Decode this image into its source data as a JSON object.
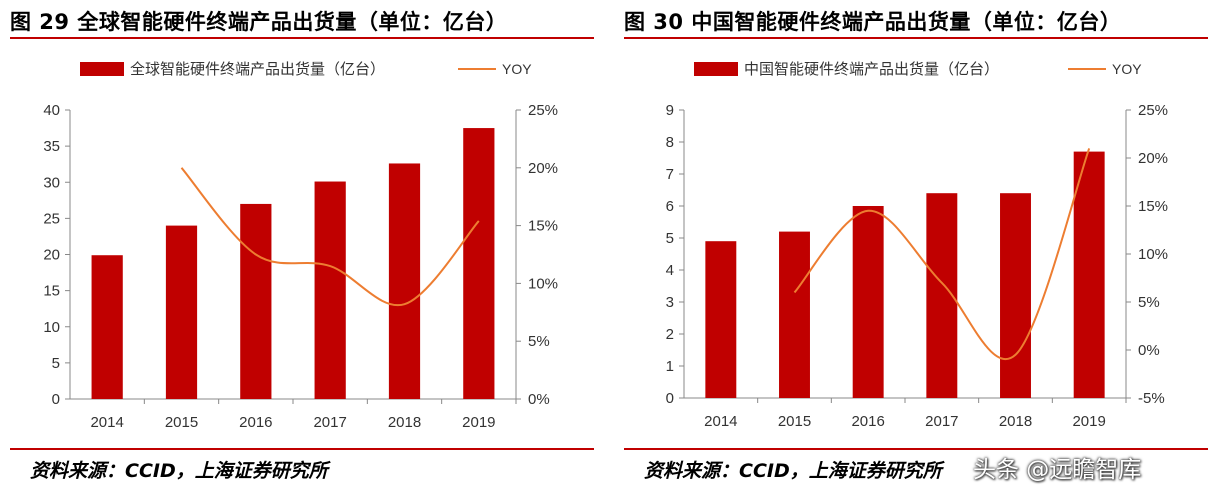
{
  "panels": [
    {
      "title": "图 29 全球智能硬件终端产品出货量（单位：亿台）",
      "source": "资料来源：CCID，上海证券研究所"
    },
    {
      "title": "图 30 中国智能硬件终端产品出货量（单位：亿台）",
      "source": "资料来源：CCID，上海证券研究所"
    }
  ],
  "watermark": "头条 @远瞻智库",
  "colors": {
    "bar": "#c00000",
    "line": "#ed7d31",
    "rule": "#c00000",
    "axis": "#888888"
  },
  "chart_data": [
    {
      "type": "bar",
      "categories": [
        "2014",
        "2015",
        "2016",
        "2017",
        "2018",
        "2019"
      ],
      "series": [
        {
          "name": "全球智能硬件终端产品出货量（亿台）",
          "type": "bar",
          "axis": "left",
          "values": [
            19.9,
            24.0,
            27.0,
            30.1,
            32.6,
            37.5
          ]
        },
        {
          "name": "YOY",
          "type": "line",
          "axis": "right",
          "values": [
            null,
            20.0,
            12.5,
            11.5,
            8.2,
            15.4
          ]
        }
      ],
      "ylim": [
        0,
        40
      ],
      "yticks": [
        0,
        5,
        10,
        15,
        20,
        25,
        30,
        35,
        40
      ],
      "y2lim": [
        0,
        25
      ],
      "y2ticks": [
        0,
        5,
        10,
        15,
        20,
        25
      ],
      "ytick_labels": [
        "0",
        "5",
        "10",
        "15",
        "20",
        "25",
        "30",
        "35",
        "40"
      ],
      "y2tick_labels": [
        "0%",
        "5%",
        "10%",
        "15%",
        "20%",
        "25%"
      ],
      "legend": "top"
    },
    {
      "type": "bar",
      "categories": [
        "2014",
        "2015",
        "2016",
        "2017",
        "2018",
        "2019"
      ],
      "series": [
        {
          "name": "中国智能硬件终端产品出货量（亿台）",
          "type": "bar",
          "axis": "left",
          "values": [
            4.9,
            5.2,
            6.0,
            6.4,
            6.4,
            7.7
          ]
        },
        {
          "name": "YOY",
          "type": "line",
          "axis": "right",
          "values": [
            null,
            6.0,
            14.5,
            7.0,
            -0.5,
            21.0
          ]
        }
      ],
      "ylim": [
        0,
        9
      ],
      "yticks": [
        0,
        1,
        2,
        3,
        4,
        5,
        6,
        7,
        8,
        9
      ],
      "y2lim": [
        -5,
        25
      ],
      "y2ticks": [
        -5,
        0,
        5,
        10,
        15,
        20,
        25
      ],
      "ytick_labels": [
        "0",
        "1",
        "2",
        "3",
        "4",
        "5",
        "6",
        "7",
        "8",
        "9"
      ],
      "y2tick_labels": [
        "-5%",
        "0%",
        "5%",
        "10%",
        "15%",
        "20%",
        "25%"
      ],
      "legend": "top"
    }
  ]
}
